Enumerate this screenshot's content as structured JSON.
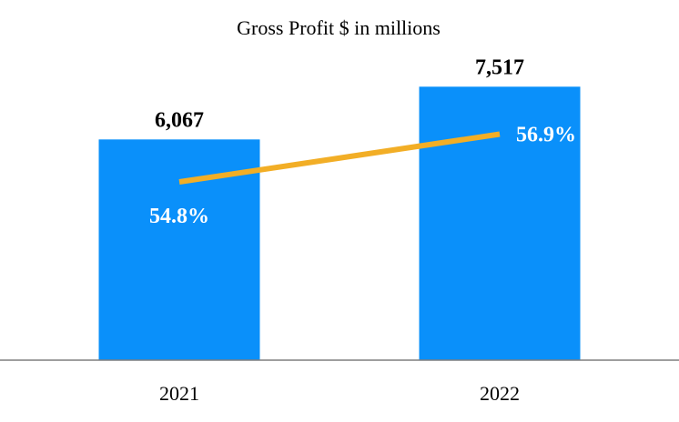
{
  "chart_data": {
    "type": "bar",
    "title": "Gross Profit $ in millions",
    "categories": [
      "2021",
      "2022"
    ],
    "series": [
      {
        "type": "bar",
        "values": [
          6067,
          7517
        ],
        "value_labels": [
          "6,067",
          "7,517"
        ],
        "color": "#0A90FA"
      },
      {
        "type": "line",
        "values": [
          54.8,
          56.9
        ],
        "value_labels": [
          "54.8%",
          "56.9%"
        ],
        "color": "#F2AE26"
      }
    ],
    "xlabel": "",
    "ylabel": "",
    "ylim": [
      0,
      7900
    ],
    "grid": false,
    "legend": "none",
    "axis_color": "#7F7F7F"
  }
}
